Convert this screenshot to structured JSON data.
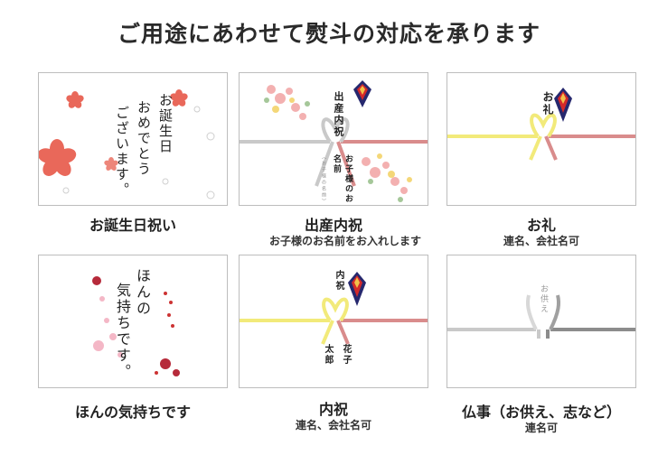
{
  "header": {
    "title": "ご用途にあわせて熨斗の対応を承ります"
  },
  "cards": [
    {
      "caption": "お誕生日祝い",
      "note": "",
      "calligraphy": [
        "お誕生日",
        "おめでとう",
        "ございます。"
      ]
    },
    {
      "caption": "出産内祝",
      "note": "お子様のお名前をお入れします",
      "upper": "出産内祝",
      "lower": "お子様のお名前",
      "small": "（お子様の名前）"
    },
    {
      "caption": "お礼",
      "note": "連名、会社名可",
      "upper": "お礼"
    },
    {
      "caption": "ほんの気持ちです",
      "note": "",
      "calligraphy": [
        "ほんの",
        "気持ちです。"
      ]
    },
    {
      "caption": "内祝",
      "note": "連名、会社名可",
      "upper": "内祝",
      "names": [
        "花子",
        "太郎"
      ]
    },
    {
      "caption": "仏事（お供え、志など）",
      "note": "連名可",
      "upper": "お供え"
    }
  ],
  "colors": {
    "blossom": "#e9685a",
    "gold_cord": "#f2ea7a",
    "red_cord": "#d98c8c",
    "silver_cord": "#c9c9c9",
    "noshi_navy": "#26286e",
    "noshi_red": "#d42a2a"
  }
}
